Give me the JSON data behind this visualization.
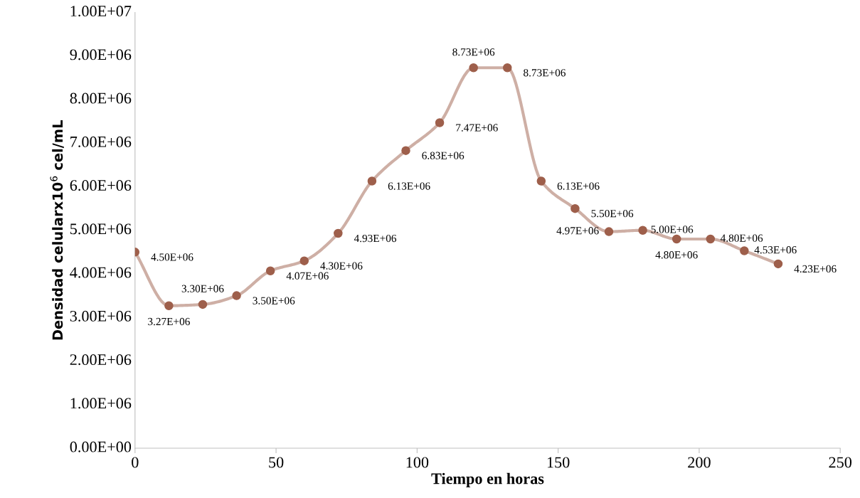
{
  "chart_data": {
    "type": "line",
    "xlabel": "Tiempo en horas",
    "ylabel": "Densidad celularx10$^{6}$ cel/mL",
    "x": [
      0,
      12,
      24,
      36,
      48,
      60,
      72,
      84,
      96,
      108,
      120,
      132,
      144,
      156,
      168,
      180,
      192,
      204,
      216,
      228
    ],
    "series": [
      {
        "color": "#9e5f4b",
        "values": [
          4500000,
          3270000,
          3300000,
          3500000,
          4070000,
          4300000,
          4930000,
          6130000,
          6830000,
          7470000,
          8730000,
          8730000,
          6130000,
          5500000,
          4970000,
          5000000,
          4800000,
          4800000,
          4530000,
          4230000
        ],
        "value_labels": [
          "4.50E+06",
          "3.27E+06",
          "3.30E+06",
          "3.50E+06",
          "4.07E+06",
          "4.30E+06",
          "4.93E+06",
          "6.13E+06",
          "6.83E+06",
          "7.47E+06",
          "8.73E+06",
          "8.73E+06",
          "6.13E+06",
          "5.50E+06",
          "4.97E+06",
          "5.00E+06",
          "4.80E+06",
          "4.80E+06",
          "4.53E+06",
          "4.23E+06"
        ]
      }
    ],
    "xlim": [
      0,
      250
    ],
    "xticks": [
      0,
      50,
      100,
      150,
      200,
      250
    ],
    "ylim": [
      0,
      10000000
    ],
    "yticks": [
      {
        "value": 0,
        "label": "0.00E+00"
      },
      {
        "value": 1000000,
        "label": "1.00E+06"
      },
      {
        "value": 2000000,
        "label": "2.00E+06"
      },
      {
        "value": 3000000,
        "label": "3.00E+06"
      },
      {
        "value": 4000000,
        "label": "4.00E+06"
      },
      {
        "value": 5000000,
        "label": "5.00E+06"
      },
      {
        "value": 6000000,
        "label": "6.00E+06"
      },
      {
        "value": 7000000,
        "label": "7.00E+06"
      },
      {
        "value": 8000000,
        "label": "8.00E+06"
      },
      {
        "value": 9000000,
        "label": "9.00E+06"
      },
      {
        "value": 10000000,
        "label": "1.00E+07"
      }
    ],
    "marker": "circle",
    "grid": false,
    "legend": false
  }
}
